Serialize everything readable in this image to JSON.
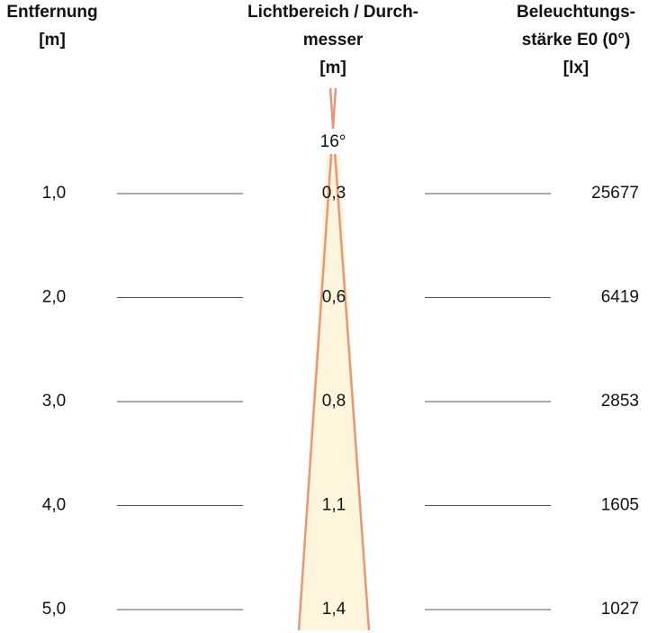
{
  "header": {
    "distance": [
      "Entfernung",
      "[m]"
    ],
    "diameter": [
      "Lichtbereich / Durch-",
      "messer",
      "[m]"
    ],
    "illuminance": [
      "Beleuchtungs-",
      "stärke E0 (0°)",
      "[lx]"
    ]
  },
  "beam_angle": "16°",
  "rows": [
    {
      "distance": "1,0",
      "diameter": "0,3",
      "illuminance": "25677"
    },
    {
      "distance": "2,0",
      "diameter": "0,6",
      "illuminance": "6419"
    },
    {
      "distance": "3,0",
      "diameter": "0,8",
      "illuminance": "2853"
    },
    {
      "distance": "4,0",
      "diameter": "1,1",
      "illuminance": "1605"
    },
    {
      "distance": "5,0",
      "diameter": "1,4",
      "illuminance": "1027"
    }
  ]
}
